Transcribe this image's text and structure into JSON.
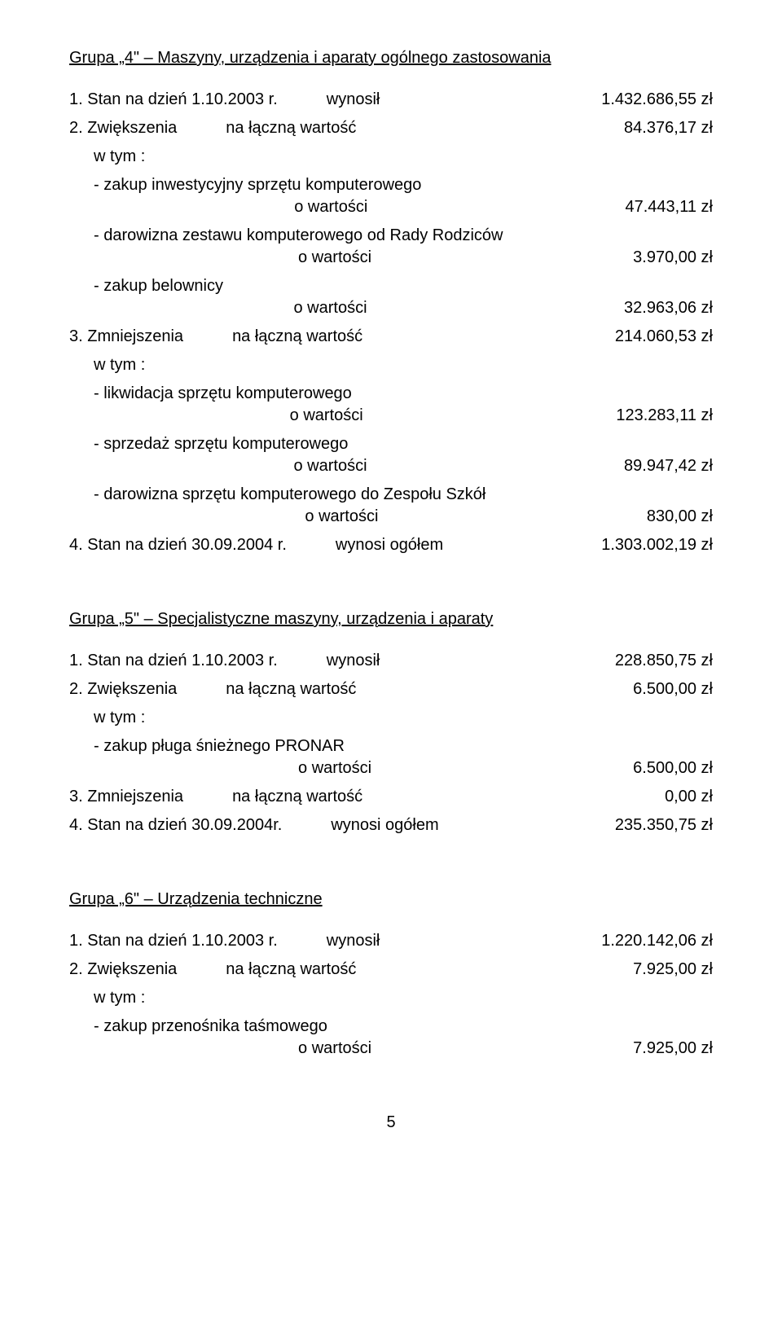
{
  "groups": [
    {
      "title": "Grupa „4\" – Maszyny, urządzenia i aparaty ogólnego zastosowania",
      "items": [
        {
          "num": "1.",
          "label": "Stan na dzień 1.10.2003 r.",
          "mid": "wynosił",
          "value": "1.432.686,55 zł"
        },
        {
          "num": "2.",
          "label": "Zwiększenia",
          "mid": "na łączną wartość",
          "value": "84.376,17 zł",
          "wtym": "w tym :",
          "subs": [
            {
              "text": "- zakup inwestycyjny sprzętu komputerowego",
              "ow": "o wartości",
              "val": "47.443,11 zł"
            },
            {
              "text": "- darowizna zestawu komputerowego od Rady Rodziców",
              "ow": "o wartości",
              "val": "3.970,00 zł"
            },
            {
              "text": "- zakup belownicy",
              "ow": "o wartości",
              "val": "32.963,06 zł"
            }
          ]
        },
        {
          "num": "3.",
          "label": "Zmniejszenia",
          "mid": "na łączną wartość",
          "value": "214.060,53 zł",
          "wtym": "w tym :",
          "subs": [
            {
              "text": "- likwidacja sprzętu komputerowego",
              "ow": "o wartości",
              "val": "123.283,11 zł"
            },
            {
              "text": "- sprzedaż sprzętu komputerowego",
              "ow": "o wartości",
              "val": "89.947,42 zł"
            },
            {
              "text": "- darowizna sprzętu komputerowego do Zespołu Szkół",
              "ow": "o wartości",
              "val": "830,00 zł"
            }
          ]
        },
        {
          "num": "4.",
          "label": "Stan na dzień 30.09.2004 r.",
          "mid": "wynosi ogółem",
          "value": "1.303.002,19 zł"
        }
      ]
    },
    {
      "title": "Grupa „5\" – Specjalistyczne maszyny, urządzenia i aparaty",
      "items": [
        {
          "num": "1.",
          "label": "Stan na dzień 1.10.2003 r.",
          "mid": "wynosił",
          "value": "228.850,75 zł"
        },
        {
          "num": "2.",
          "label": "Zwiększenia",
          "mid": "na łączną wartość",
          "value": "6.500,00 zł",
          "wtym": "w tym :",
          "subs": [
            {
              "text": "- zakup pługa śnieżnego PRONAR",
              "ow": "o wartości",
              "val": "6.500,00 zł"
            }
          ]
        },
        {
          "num": "3.",
          "label": "Zmniejszenia",
          "mid": "na łączną wartość",
          "value": "0,00 zł"
        },
        {
          "num": "4.",
          "label": "Stan na dzień 30.09.2004r.",
          "mid": "wynosi ogółem",
          "value": "235.350,75 zł"
        }
      ]
    },
    {
      "title": "Grupa „6\" – Urządzenia techniczne",
      "items": [
        {
          "num": "1.",
          "label": "Stan na dzień 1.10.2003 r.",
          "mid": "wynosił",
          "value": "1.220.142,06 zł"
        },
        {
          "num": "2.",
          "label": "Zwiększenia",
          "mid": "na łączną wartość",
          "value": "7.925,00 zł",
          "wtym": "w tym :",
          "subs": [
            {
              "text": "- zakup przenośnika taśmowego",
              "ow": "o wartości",
              "val": "7.925,00 zł"
            }
          ]
        }
      ]
    }
  ],
  "pageNumber": "5"
}
